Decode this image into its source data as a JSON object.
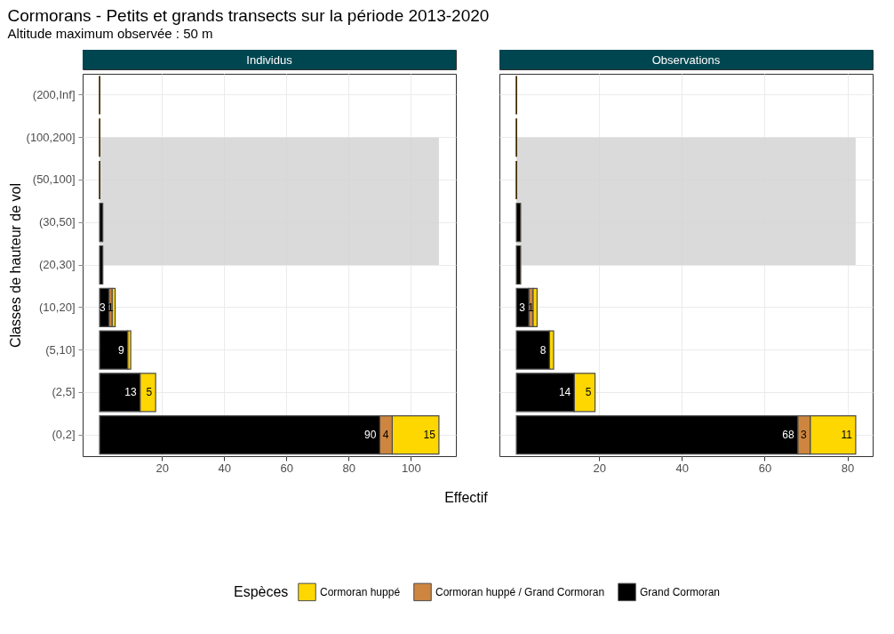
{
  "chart_data": [
    {
      "type": "other",
      "title": "Cormorans - Petits et grands transects sur la période 2013-2020",
      "subtitle": "Altitude maximum observée : 50 m"
    },
    {
      "type": "bar",
      "title": "Individus",
      "orientation": "horizontal",
      "stacked": true,
      "xlabel": "Effectif",
      "ylabel": "Classes de hauteur de vol",
      "categories": [
        "(200,Inf]",
        "(100,200]",
        "(50,100]",
        "(30,50]",
        "(20,30]",
        "(10,20]",
        "(5,10]",
        "(2,5]",
        "(0,2]"
      ],
      "series": [
        {
          "name": "Grand Cormoran",
          "color": "#000000",
          "values": [
            0,
            0,
            0,
            1,
            1,
            3,
            9,
            13,
            90
          ],
          "value_labels": [
            null,
            null,
            null,
            null,
            null,
            "3",
            "9",
            "13",
            "90"
          ]
        },
        {
          "name": "Cormoran huppé / Grand Cormoran",
          "color": "#cd853f",
          "values": [
            0,
            0,
            0,
            0,
            0,
            1,
            0,
            0,
            4
          ],
          "value_labels": [
            null,
            null,
            null,
            null,
            null,
            "1",
            null,
            null,
            "4"
          ]
        },
        {
          "name": "Cormoran huppé",
          "color": "#ffd700",
          "values": [
            0,
            0,
            0,
            0,
            0,
            1,
            1,
            5,
            15
          ],
          "value_labels": [
            null,
            null,
            null,
            null,
            null,
            null,
            null,
            "5",
            "15"
          ]
        }
      ],
      "xlim": [
        -5.45,
        114.45
      ],
      "xticks": [
        20,
        40,
        60,
        80,
        100
      ],
      "grid": true,
      "legend": "bottom",
      "bands": [
        {
          "axis": "y",
          "from": "(100,200]",
          "to": "(20,30]",
          "color": "#d3d3d3"
        }
      ]
    },
    {
      "type": "bar",
      "title": "Observations",
      "orientation": "horizontal",
      "stacked": true,
      "legend_title": "Espèces",
      "legend": "bottom",
      "tick_labels": "x",
      "categories": [
        "(200,Inf]",
        "(100,200]",
        "(50,100]",
        "(30,50]",
        "(20,30]",
        "(10,20]",
        "(5,10]",
        "(2,5]",
        "(0,2]"
      ],
      "series": [
        {
          "name": "Grand Cormoran",
          "color": "#000000",
          "values": [
            0,
            0,
            0,
            1,
            1,
            3,
            8,
            14,
            68
          ],
          "value_labels": [
            null,
            null,
            null,
            null,
            null,
            "3",
            "8",
            "14",
            "68"
          ]
        },
        {
          "name": "Cormoran huppé / Grand Cormoran",
          "color": "#cd853f",
          "values": [
            0,
            0,
            0,
            0,
            0,
            1,
            0,
            0,
            3
          ],
          "value_labels": [
            null,
            null,
            null,
            null,
            null,
            "1",
            null,
            null,
            "3"
          ]
        },
        {
          "name": "Cormoran huppé",
          "color": "#ffd700",
          "values": [
            0,
            0,
            0,
            0,
            0,
            1,
            1,
            5,
            11
          ],
          "value_labels": [
            null,
            null,
            null,
            null,
            null,
            null,
            null,
            "5",
            "11"
          ]
        }
      ],
      "xlim": [
        -4.1,
        86.1
      ],
      "xticks": [
        20,
        40,
        60,
        80
      ],
      "grid": true,
      "bands": [
        {
          "axis": "y",
          "from": "(100,200]",
          "to": "(20,30]",
          "color": "#d3d3d3"
        }
      ]
    }
  ]
}
